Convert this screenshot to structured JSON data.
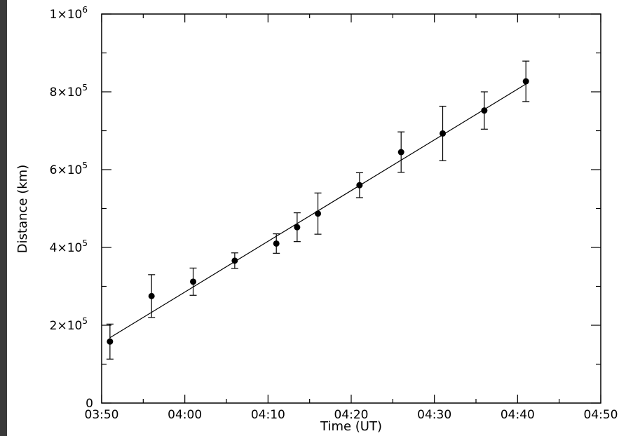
{
  "chart_data": {
    "type": "scatter",
    "title": "",
    "xlabel": "Time (UT)",
    "ylabel": "Distance (km)",
    "x_ticks": [
      "03:50",
      "04:00",
      "04:10",
      "04:20",
      "04:30",
      "04:40",
      "04:50"
    ],
    "y_tick_labels": [
      {
        "mantissa": "0",
        "exponent": ""
      },
      {
        "mantissa": "2×10",
        "exponent": "5"
      },
      {
        "mantissa": "4×10",
        "exponent": "5"
      },
      {
        "mantissa": "6×10",
        "exponent": "5"
      },
      {
        "mantissa": "8×10",
        "exponent": "5"
      },
      {
        "mantissa": "1×10",
        "exponent": "6"
      }
    ],
    "xlim": [
      "03:50",
      "04:50"
    ],
    "ylim": [
      0,
      1000000
    ],
    "grid": false,
    "series": [
      {
        "points": [
          {
            "x": "03:51",
            "y": 158000,
            "err": 45000
          },
          {
            "x": "03:56",
            "y": 275000,
            "err": 55000
          },
          {
            "x": "04:01",
            "y": 312000,
            "err": 35000
          },
          {
            "x": "04:06",
            "y": 366000,
            "err": 20000
          },
          {
            "x": "04:11",
            "y": 410000,
            "err": 25000
          },
          {
            "x": "04:13:30",
            "y": 452000,
            "err": 37000
          },
          {
            "x": "04:16",
            "y": 487000,
            "err": 53000
          },
          {
            "x": "04:21",
            "y": 560000,
            "err": 32000
          },
          {
            "x": "04:26",
            "y": 645000,
            "err": 52000
          },
          {
            "x": "04:31",
            "y": 693000,
            "err": 70000
          },
          {
            "x": "04:36",
            "y": 752000,
            "err": 48000
          },
          {
            "x": "04:41",
            "y": 827000,
            "err": 52000
          }
        ]
      }
    ],
    "fit_line": {
      "x_start": "03:51",
      "y_start": 168000,
      "x_end": "04:41",
      "y_end": 820000
    },
    "colors": {
      "marker": "#000000",
      "line": "#000000",
      "background": "#ffffff",
      "outer_background": "#3a3a3a"
    }
  }
}
